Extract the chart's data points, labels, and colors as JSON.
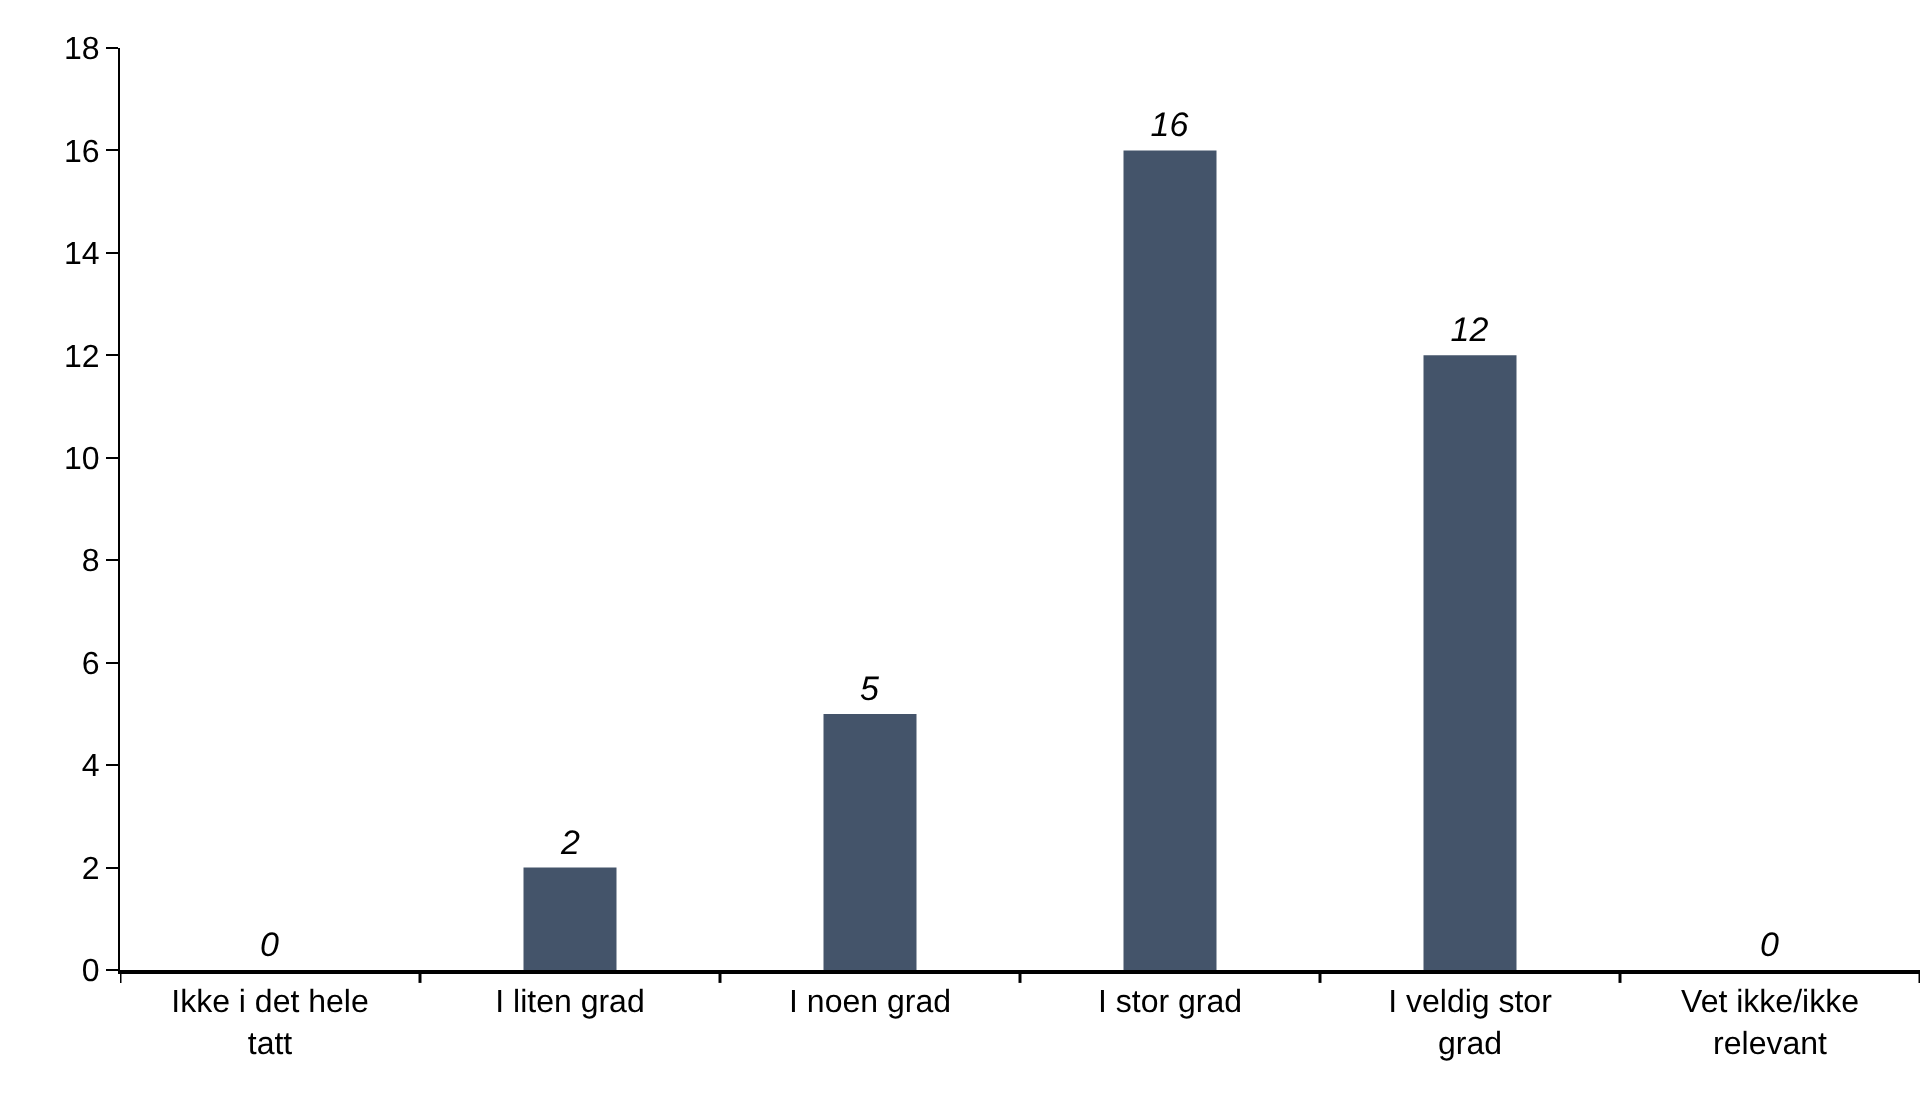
{
  "chart_data": {
    "type": "bar",
    "categories": [
      "Ikke i det hele tatt",
      "I liten grad",
      "I noen grad",
      "I stor grad",
      "I veldig stor grad",
      "Vet ikke/ikke relevant"
    ],
    "values": [
      0,
      2,
      5,
      16,
      12,
      0
    ],
    "color": "#44546a",
    "ylim": [
      0,
      18
    ],
    "yticks": [
      0,
      2,
      4,
      6,
      8,
      10,
      12,
      14,
      16,
      18
    ],
    "grid": false,
    "data_labels": true
  }
}
